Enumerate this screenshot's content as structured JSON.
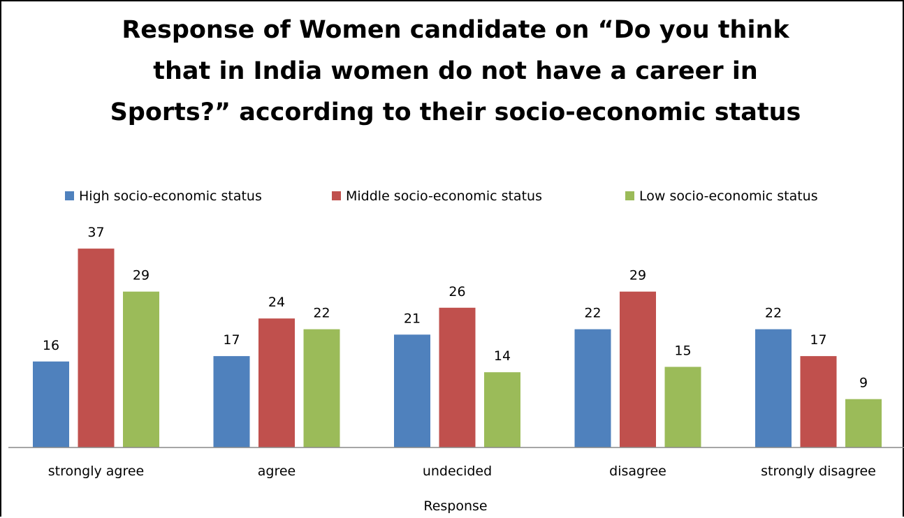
{
  "chart_data": {
    "type": "bar",
    "title": "Response of Women candidate on “Do you think that in India women do not have a career in Sports?” according to their socio-economic status",
    "title_lines": [
      "Response of Women candidate on “Do you think",
      "that in India women do not have a career in",
      "Sports?” according to their socio-economic status"
    ],
    "xlabel": "Response",
    "ylabel": "",
    "categories": [
      "strongly agree",
      "agree",
      "undecided",
      "disagree",
      "strongly disagree"
    ],
    "series": [
      {
        "name": "High socio-economic status",
        "color": "#4F81BD",
        "values": [
          16,
          17,
          21,
          22,
          22
        ]
      },
      {
        "name": "Middle socio-economic status",
        "color": "#C0504D",
        "values": [
          37,
          24,
          26,
          29,
          17
        ]
      },
      {
        "name": "Low  socio-economic status",
        "color": "#9BBB59",
        "values": [
          29,
          22,
          14,
          15,
          9
        ]
      }
    ],
    "ylim": [
      0,
      40
    ],
    "grid": false,
    "legend_position": "top",
    "data_labels": true
  }
}
